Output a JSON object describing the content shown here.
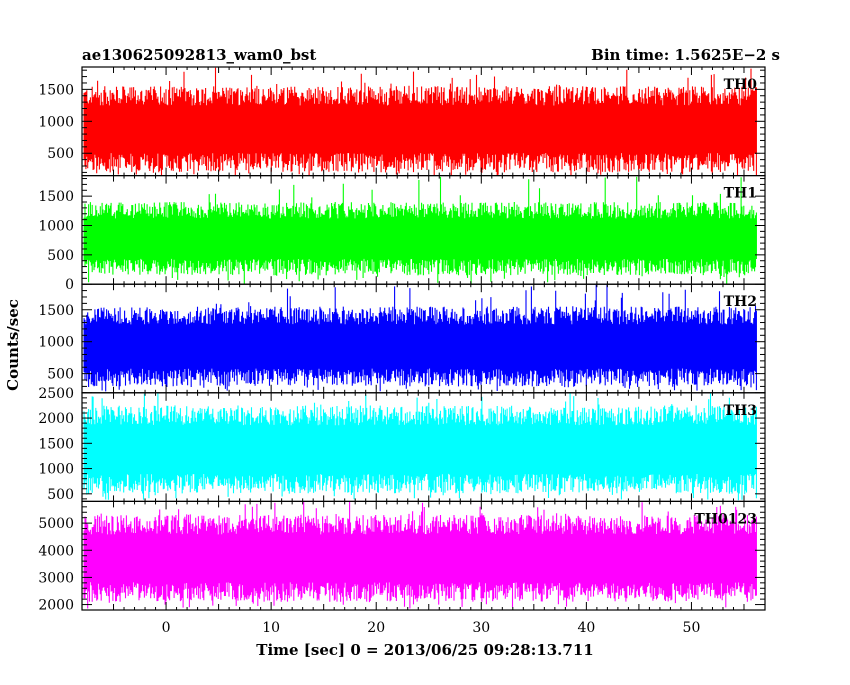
{
  "title_left": "ae130625092813_wam0_bst",
  "title_right": "Bin time: 1.5625E−2 s",
  "chart_data": {
    "type": "line",
    "xlabel": "Time [sec] 0 = 2013/06/25 09:28:13.711",
    "ylabel": "Counts/sec",
    "xlim": [
      -8,
      57
    ],
    "x_ticks": [
      0,
      10,
      20,
      30,
      40,
      50
    ],
    "x_data_range": [
      -7.8,
      56.2
    ],
    "grid": false,
    "panels": [
      {
        "label": "TH0",
        "color": "#ff0000",
        "ylim": [
          150,
          1850
        ],
        "y_ticks": [
          500,
          1000,
          1500
        ],
        "typical_min": 200,
        "typical_max": 1550,
        "extreme_min": 150,
        "extreme_max": 1850
      },
      {
        "label": "TH1",
        "color": "#00ff00",
        "ylim": [
          0,
          1850
        ],
        "y_ticks": [
          0,
          500,
          1000,
          1500
        ],
        "typical_min": 150,
        "typical_max": 1400,
        "extreme_min": 0,
        "extreme_max": 1850
      },
      {
        "label": "TH2",
        "color": "#0000ff",
        "ylim": [
          200,
          1900
        ],
        "y_ticks": [
          500,
          1000,
          1500
        ],
        "typical_min": 300,
        "typical_max": 1550,
        "extreme_min": 220,
        "extreme_max": 1900
      },
      {
        "label": "TH3",
        "color": "#00ffff",
        "ylim": [
          350,
          2500
        ],
        "y_ticks": [
          500,
          1000,
          1500,
          2000,
          2500
        ],
        "typical_min": 500,
        "typical_max": 2250,
        "extreme_min": 370,
        "extreme_max": 2500
      },
      {
        "label": "TH0123",
        "color": "#ff00ff",
        "ylim": [
          1800,
          5800
        ],
        "y_ticks": [
          2000,
          3000,
          4000,
          5000
        ],
        "typical_min": 2100,
        "typical_max": 5300,
        "extreme_min": 1850,
        "extreme_max": 5800
      }
    ]
  }
}
